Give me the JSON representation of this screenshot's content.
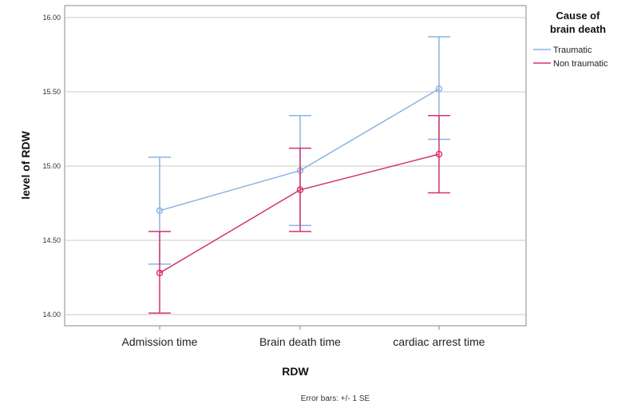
{
  "chart_data": {
    "type": "line",
    "xlabel": "RDW",
    "ylabel": "level of RDW",
    "categories": [
      "Admission time",
      "Brain death time",
      "cardiac arrest time"
    ],
    "ylim": [
      13.98,
      16.05
    ],
    "yticks": [
      "14.00",
      "14.50",
      "15.00",
      "15.50",
      "16.00"
    ],
    "grid": true,
    "legend": {
      "title_lines": [
        "Cause of",
        "brain death"
      ],
      "position": "right"
    },
    "series": [
      {
        "name": "Traumatic",
        "color": "#8bb4e0",
        "values": [
          14.7,
          14.97,
          15.52
        ],
        "error_low": [
          14.34,
          14.6,
          15.18
        ],
        "error_high": [
          15.06,
          15.34,
          15.87
        ]
      },
      {
        "name": "Non traumatic",
        "color": "#d6336c",
        "values": [
          14.28,
          14.84,
          15.08
        ],
        "error_low": [
          14.01,
          14.56,
          14.82
        ],
        "error_high": [
          14.56,
          15.12,
          15.34
        ]
      }
    ],
    "footnote": "Error bars: +/- 1 SE"
  }
}
